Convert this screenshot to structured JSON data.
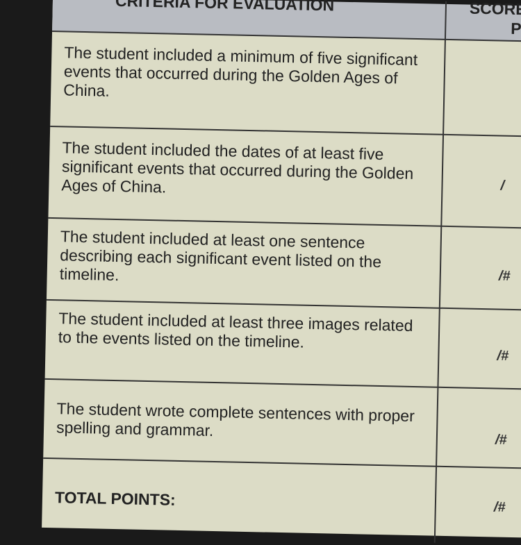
{
  "header": {
    "criteria": "CRITERIA FOR EVALUATION",
    "score": "SCORE",
    "score_line2": "P"
  },
  "rows": [
    {
      "criteria": "The student included a minimum of five significant events that occurred during the Golden Ages of China.",
      "score": ""
    },
    {
      "criteria": "The student included the dates of at least five significant events that occurred during the Golden Ages of China.",
      "score": "/"
    },
    {
      "criteria": "The student included at least one sentence describing each significant event listed on the timeline.",
      "score": "/#"
    },
    {
      "criteria": "The student included at least three images related to the events listed on the timeline.",
      "score": "/#"
    },
    {
      "criteria": "The student wrote complete sentences with proper spelling and grammar.",
      "score": "/#"
    }
  ],
  "total": {
    "label": "TOTAL POINTS:",
    "score": "/#"
  }
}
